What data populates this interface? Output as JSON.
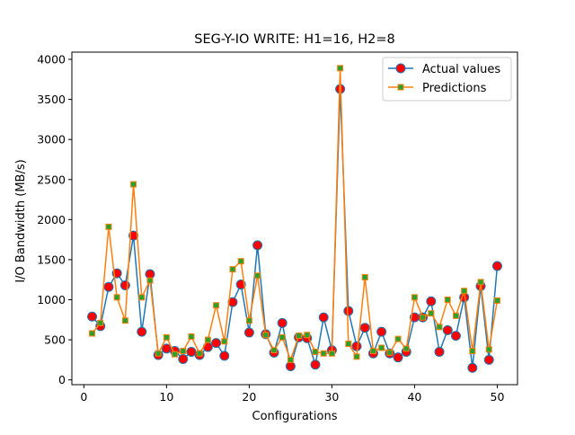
{
  "chart_data": {
    "type": "line",
    "title": "SEG-Y-IO WRITE: H1=16, H2=8",
    "xlabel": "Configurations",
    "ylabel": "I/O Bandwidth (MB/s)",
    "xlim": [
      -1.45,
      52.45
    ],
    "ylim": [
      -60,
      4090
    ],
    "xticks": [
      0,
      10,
      20,
      30,
      40,
      50
    ],
    "yticks": [
      0,
      500,
      1000,
      1500,
      2000,
      2500,
      3000,
      3500,
      4000
    ],
    "grid": false,
    "legend_position": "top-right",
    "x": [
      1,
      2,
      3,
      4,
      5,
      6,
      7,
      8,
      9,
      10,
      11,
      12,
      13,
      14,
      15,
      16,
      17,
      18,
      19,
      20,
      21,
      22,
      23,
      24,
      25,
      26,
      27,
      28,
      29,
      30,
      31,
      32,
      33,
      34,
      35,
      36,
      37,
      38,
      39,
      40,
      41,
      42,
      43,
      44,
      45,
      46,
      47,
      48,
      49,
      50
    ],
    "series": [
      {
        "name": "Actual values",
        "color": "#1f77b4",
        "marker": "circle",
        "marker_face": "#ff0000",
        "values": [
          790,
          670,
          1160,
          1330,
          1180,
          1800,
          600,
          1320,
          310,
          390,
          360,
          260,
          350,
          310,
          410,
          460,
          300,
          970,
          1190,
          590,
          1680,
          570,
          340,
          710,
          170,
          530,
          520,
          190,
          780,
          370,
          3630,
          860,
          420,
          650,
          330,
          600,
          330,
          280,
          350,
          780,
          780,
          980,
          350,
          620,
          550,
          1030,
          150,
          1170,
          250,
          1420
        ]
      },
      {
        "name": "Predictions",
        "color": "#ff7f0e",
        "marker": "square",
        "marker_face": "#2ca02c",
        "values": [
          580,
          710,
          1910,
          1030,
          740,
          2440,
          1030,
          1240,
          330,
          530,
          320,
          360,
          540,
          330,
          500,
          930,
          480,
          1380,
          1480,
          740,
          1300,
          560,
          370,
          530,
          250,
          550,
          560,
          350,
          330,
          330,
          3890,
          450,
          290,
          1280,
          360,
          400,
          340,
          510,
          390,
          1030,
          780,
          830,
          660,
          1000,
          800,
          1110,
          360,
          1220,
          380,
          990
        ]
      }
    ]
  }
}
